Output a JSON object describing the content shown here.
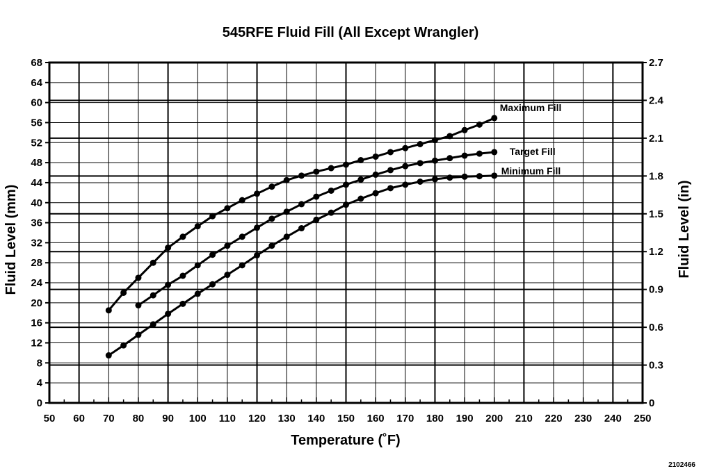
{
  "chart_data": {
    "type": "line",
    "title": "545RFE Fluid Fill (All Except Wrangler)",
    "xlabel": "Temperature (˚F)",
    "ylabel": "Fluid Level (mm)",
    "y2label": "Fluid Level (in)",
    "xlim": [
      50,
      250
    ],
    "ylim": [
      0,
      68
    ],
    "y2lim": [
      0,
      2.7
    ],
    "x_ticks": [
      50,
      60,
      70,
      80,
      90,
      100,
      110,
      120,
      130,
      140,
      150,
      160,
      170,
      180,
      190,
      200,
      210,
      220,
      230,
      240,
      250
    ],
    "y_ticks": [
      0,
      4,
      8,
      12,
      16,
      20,
      24,
      28,
      32,
      36,
      40,
      44,
      48,
      52,
      56,
      60,
      64,
      68
    ],
    "y2_ticks": [
      "0",
      "0.3",
      "0.6",
      "0.9",
      "1.2",
      "1.5",
      "1.8",
      "2.1",
      "2.4",
      "2.7"
    ],
    "grid": true,
    "legend": "none",
    "series": [
      {
        "name": "Maximum Fill",
        "x": [
          70,
          75,
          80,
          85,
          90,
          95,
          100,
          105,
          110,
          115,
          120,
          125,
          130,
          135,
          140,
          145,
          150,
          155,
          160,
          165,
          170,
          175,
          180,
          185,
          190,
          195,
          200
        ],
        "values": [
          18.5,
          22,
          25,
          28,
          31,
          33.2,
          35.3,
          37.3,
          38.9,
          40.5,
          41.8,
          43.2,
          44.5,
          45.4,
          46.2,
          46.9,
          47.6,
          48.5,
          49.2,
          50.1,
          50.9,
          51.7,
          52.5,
          53.3,
          54.5,
          55.6,
          56.9
        ]
      },
      {
        "name": "Target Fill",
        "x": [
          80,
          85,
          90,
          95,
          100,
          105,
          110,
          115,
          120,
          125,
          130,
          135,
          140,
          145,
          150,
          155,
          160,
          165,
          170,
          175,
          180,
          185,
          190,
          195,
          200
        ],
        "values": [
          19.5,
          21.5,
          23.6,
          25.4,
          27.5,
          29.6,
          31.4,
          33.2,
          35,
          36.8,
          38.2,
          39.7,
          41.2,
          42.4,
          43.6,
          44.6,
          45.6,
          46.5,
          47.3,
          47.9,
          48.4,
          48.9,
          49.4,
          49.8,
          50.1
        ]
      },
      {
        "name": "Minimum Fill",
        "x": [
          70,
          75,
          80,
          85,
          90,
          95,
          100,
          105,
          110,
          115,
          120,
          125,
          130,
          135,
          140,
          145,
          150,
          155,
          160,
          165,
          170,
          175,
          180,
          185,
          190,
          195,
          200
        ],
        "values": [
          9.5,
          11.5,
          13.6,
          15.7,
          17.8,
          19.8,
          21.8,
          23.7,
          25.6,
          27.5,
          29.5,
          31.4,
          33.2,
          34.9,
          36.6,
          38,
          39.6,
          40.8,
          41.9,
          42.9,
          43.6,
          44.2,
          44.7,
          45,
          45.2,
          45.3,
          45.4
        ]
      }
    ]
  },
  "figure_id": "2102466"
}
